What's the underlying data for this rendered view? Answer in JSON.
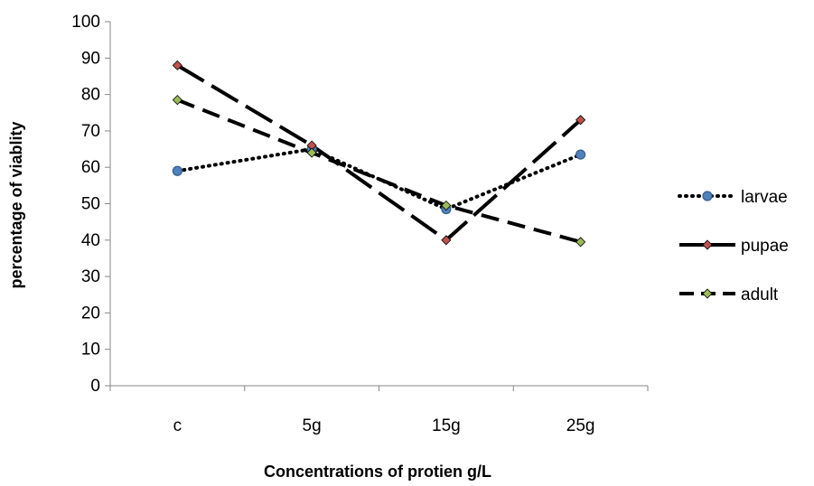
{
  "chart_data": {
    "type": "line",
    "title": "",
    "xlabel": "Concentrations of protien  g/L",
    "ylabel": "percentage of viablity",
    "categories": [
      "c",
      "5g",
      "15g",
      "25g"
    ],
    "ylim": [
      0,
      100
    ],
    "yticks": [
      0,
      10,
      20,
      30,
      40,
      50,
      60,
      70,
      80,
      90,
      100
    ],
    "grid": false,
    "legend_position": "right",
    "series": [
      {
        "name": "larvae",
        "values": [
          59,
          65,
          48.5,
          63.5
        ],
        "line_style": "dotted",
        "marker": "circle",
        "marker_color": "#4f81bd"
      },
      {
        "name": "pupae",
        "values": [
          88,
          66,
          40,
          73
        ],
        "line_style": "long-dash",
        "marker": "diamond",
        "marker_color": "#c0504d"
      },
      {
        "name": "adult",
        "values": [
          78.5,
          64,
          49.5,
          39.5
        ],
        "line_style": "dash",
        "marker": "diamond",
        "marker_color": "#9bbb59"
      }
    ]
  }
}
